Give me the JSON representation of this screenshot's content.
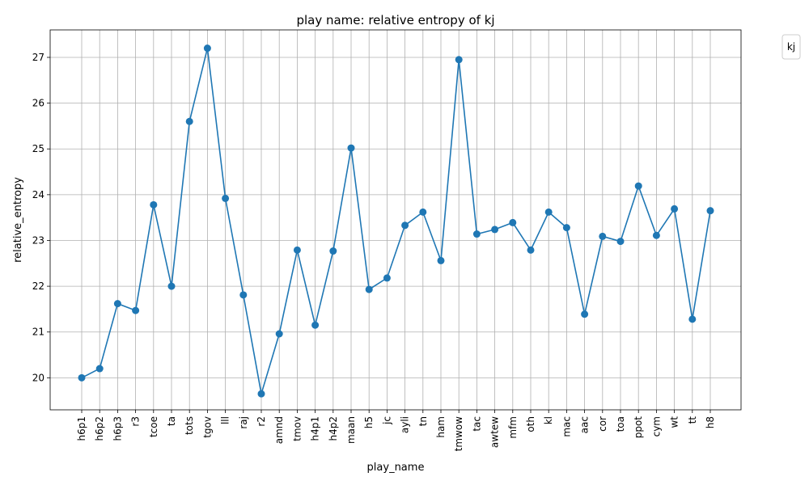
{
  "chart_data": {
    "type": "line",
    "title": "play name: relative entropy of kj",
    "xlabel": "play_name",
    "ylabel": "relative_entropy",
    "legend_title": "kj",
    "legend_placement": "outside-top-right",
    "grid": true,
    "ylim": [
      19.3,
      27.6
    ],
    "yticks": [
      20,
      21,
      22,
      23,
      24,
      25,
      26,
      27
    ],
    "series_color": "#1f77b4",
    "categories": [
      "h6p1",
      "h6p2",
      "h6p3",
      "r3",
      "tcoe",
      "ta",
      "tots",
      "tgov",
      "lll",
      "raj",
      "r2",
      "amnd",
      "tmov",
      "h4p1",
      "h4p2",
      "maan",
      "h5",
      "jc",
      "ayli",
      "tn",
      "ham",
      "tmwow",
      "tac",
      "awtew",
      "mfm",
      "oth",
      "kl",
      "mac",
      "aac",
      "cor",
      "toa",
      "ppot",
      "cym",
      "wt",
      "tt",
      "h8"
    ],
    "values": [
      20.0,
      20.2,
      21.62,
      21.47,
      23.78,
      22.0,
      25.6,
      27.2,
      23.92,
      21.81,
      19.65,
      20.96,
      22.79,
      21.15,
      22.77,
      25.02,
      21.93,
      22.18,
      23.33,
      23.62,
      22.56,
      26.95,
      23.14,
      23.24,
      23.39,
      22.79,
      23.62,
      23.28,
      21.39,
      23.09,
      22.98,
      24.19,
      23.11,
      23.69,
      21.28,
      23.65
    ]
  }
}
